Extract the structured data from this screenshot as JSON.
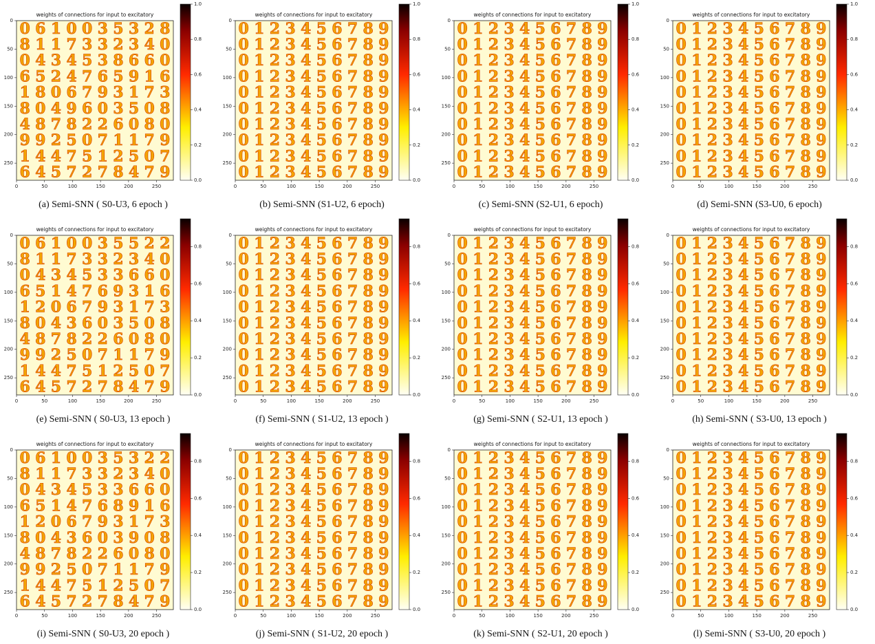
{
  "chart_data": [
    {
      "type": "heatmap",
      "title": "weights of connections for input to excitatory",
      "caption": "(a) Semi-SNN ( S0-U3, 6 epoch )",
      "cmap": "hot_r",
      "rows": [
        "0610035328",
        "8117332340",
        "0434538660",
        "6524765916",
        "1806793173",
        "8049603508",
        "4878226080",
        "9925071179",
        "1447512507",
        "6457278479"
      ],
      "xlim": [
        0,
        280
      ],
      "ylim": [
        0,
        280
      ],
      "xticks": [
        0,
        50,
        100,
        150,
        200,
        250
      ],
      "yticks": [
        0,
        50,
        100,
        150,
        200,
        250
      ],
      "clim": [
        0,
        1
      ],
      "cticks": [
        {
          "value": 0,
          "label": "0.0"
        },
        {
          "value": 0.2,
          "label": "0.2"
        },
        {
          "value": 0.4,
          "label": "0.4"
        },
        {
          "value": 0.6,
          "label": "0.6"
        },
        {
          "value": 0.8,
          "label": "0.8"
        },
        {
          "value": 1,
          "label": "1.0"
        }
      ]
    },
    {
      "type": "heatmap",
      "title": "weights of connections for input to excitatory",
      "caption": "(b) Semi-SNN (S1-U2, 6 epoch)",
      "cmap": "hot_r",
      "rows": [
        "0123456789",
        "0123456789",
        "0123456789",
        "0123456789",
        "0123456789",
        "0123456789",
        "0123456789",
        "0123456789",
        "0123456789",
        "0123456789"
      ],
      "xlim": [
        0,
        280
      ],
      "ylim": [
        0,
        280
      ],
      "xticks": [
        0,
        50,
        100,
        150,
        200,
        250
      ],
      "yticks": [
        0,
        50,
        100,
        150,
        200,
        250
      ],
      "clim": [
        0,
        1
      ],
      "cticks": [
        {
          "value": 0,
          "label": "0.0"
        },
        {
          "value": 0.2,
          "label": "0.2"
        },
        {
          "value": 0.4,
          "label": "0.4"
        },
        {
          "value": 0.6,
          "label": "0.6"
        },
        {
          "value": 0.8,
          "label": "0.8"
        },
        {
          "value": 1,
          "label": "1.0"
        }
      ]
    },
    {
      "type": "heatmap",
      "title": "weights of connections for input to excitatory",
      "caption": "(c) Semi-SNN (S2-U1, 6 epoch)",
      "cmap": "hot_r",
      "rows": [
        "0123456789",
        "0123456789",
        "0123456789",
        "0123456789",
        "0123456789",
        "0123456789",
        "0123456789",
        "0123456789",
        "0123456789",
        "0123456789"
      ],
      "xlim": [
        0,
        280
      ],
      "ylim": [
        0,
        280
      ],
      "xticks": [
        0,
        50,
        100,
        150,
        200,
        250
      ],
      "yticks": [
        0,
        50,
        100,
        150,
        200,
        250
      ],
      "clim": [
        0,
        1
      ],
      "cticks": [
        {
          "value": 0,
          "label": "0.0"
        },
        {
          "value": 0.2,
          "label": "0.2"
        },
        {
          "value": 0.4,
          "label": "0.4"
        },
        {
          "value": 0.6,
          "label": "0.6"
        },
        {
          "value": 0.8,
          "label": "0.8"
        },
        {
          "value": 1,
          "label": "1.0"
        }
      ]
    },
    {
      "type": "heatmap",
      "title": "weights of connections for input to excitatory",
      "caption": "(d) Semi-SNN (S3-U0, 6 epoch)",
      "cmap": "hot_r",
      "rows": [
        "0123456789",
        "0123456789",
        "0123456789",
        "0123456789",
        "0123456789",
        "0123456789",
        "0123456789",
        "0123456789",
        "0123456789",
        "0123456789"
      ],
      "xlim": [
        0,
        280
      ],
      "ylim": [
        0,
        280
      ],
      "xticks": [
        0,
        50,
        100,
        150,
        200,
        250
      ],
      "yticks": [
        0,
        50,
        100,
        150,
        200,
        250
      ],
      "clim": [
        0,
        1
      ],
      "cticks": [
        {
          "value": 0,
          "label": "0.0"
        },
        {
          "value": 0.2,
          "label": "0.2"
        },
        {
          "value": 0.4,
          "label": "0.4"
        },
        {
          "value": 0.6,
          "label": "0.6"
        },
        {
          "value": 0.8,
          "label": "0.8"
        },
        {
          "value": 1,
          "label": "1.0"
        }
      ]
    },
    {
      "type": "heatmap",
      "title": "weights of connections for input to excitatory",
      "caption": "(e) Semi-SNN ( S0-U3, 13 epoch )",
      "cmap": "hot_r",
      "rows": [
        "0610035522",
        "8117332340",
        "0434533660",
        "6514769316",
        "1206793173",
        "8043603508",
        "4878226080",
        "9925071179",
        "1447512507",
        "6457278479"
      ],
      "xlim": [
        0,
        280
      ],
      "ylim": [
        0,
        280
      ],
      "xticks": [
        0,
        50,
        100,
        150,
        200,
        250
      ],
      "yticks": [
        0,
        50,
        100,
        150,
        200,
        250
      ],
      "clim": [
        0,
        0.95
      ],
      "cticks": [
        {
          "value": 0,
          "label": "0.0"
        },
        {
          "value": 0.2,
          "label": "0.2"
        },
        {
          "value": 0.4,
          "label": "0.4"
        },
        {
          "value": 0.6,
          "label": "0.6"
        },
        {
          "value": 0.8,
          "label": "0.8"
        }
      ]
    },
    {
      "type": "heatmap",
      "title": "weights of connections for input to excitatory",
      "caption": "(f) Semi-SNN ( S1-U2, 13 epoch )",
      "cmap": "hot_r",
      "rows": [
        "0123456789",
        "0123456789",
        "0123456789",
        "0123456789",
        "0123456789",
        "0123456789",
        "0123456789",
        "0123456789",
        "0123456789",
        "0123456789"
      ],
      "xlim": [
        0,
        280
      ],
      "ylim": [
        0,
        280
      ],
      "xticks": [
        0,
        50,
        100,
        150,
        200,
        250
      ],
      "yticks": [
        0,
        50,
        100,
        150,
        200,
        250
      ],
      "clim": [
        0,
        0.95
      ],
      "cticks": [
        {
          "value": 0,
          "label": "0.0"
        },
        {
          "value": 0.2,
          "label": "0.2"
        },
        {
          "value": 0.4,
          "label": "0.4"
        },
        {
          "value": 0.6,
          "label": "0.6"
        },
        {
          "value": 0.8,
          "label": "0.8"
        }
      ]
    },
    {
      "type": "heatmap",
      "title": "weights of connections for input to excitatory",
      "caption": "(g) Semi-SNN ( S2-U1, 13 epoch )",
      "cmap": "hot_r",
      "rows": [
        "0123456789",
        "0123456789",
        "0123456789",
        "0123456789",
        "0123456789",
        "0123456789",
        "0123456789",
        "0123456789",
        "0123456789",
        "0123456789"
      ],
      "xlim": [
        0,
        280
      ],
      "ylim": [
        0,
        280
      ],
      "xticks": [
        0,
        50,
        100,
        150,
        200,
        250
      ],
      "yticks": [
        0,
        50,
        100,
        150,
        200,
        250
      ],
      "clim": [
        0,
        0.95
      ],
      "cticks": [
        {
          "value": 0,
          "label": "0.0"
        },
        {
          "value": 0.2,
          "label": "0.2"
        },
        {
          "value": 0.4,
          "label": "0.4"
        },
        {
          "value": 0.6,
          "label": "0.6"
        },
        {
          "value": 0.8,
          "label": "0.8"
        }
      ]
    },
    {
      "type": "heatmap",
      "title": "weights of connections for input to excitatory",
      "caption": "(h) Semi-SNN ( S3-U0, 13 epoch )",
      "cmap": "hot_r",
      "rows": [
        "0123456789",
        "0123456789",
        "0123456789",
        "0123456789",
        "0123456789",
        "0123456789",
        "0123456789",
        "0123456789",
        "0123456789",
        "0123456789"
      ],
      "xlim": [
        0,
        280
      ],
      "ylim": [
        0,
        280
      ],
      "xticks": [
        0,
        50,
        100,
        150,
        200,
        250
      ],
      "yticks": [
        0,
        50,
        100,
        150,
        200,
        250
      ],
      "clim": [
        0,
        0.95
      ],
      "cticks": [
        {
          "value": 0,
          "label": "0.0"
        },
        {
          "value": 0.2,
          "label": "0.2"
        },
        {
          "value": 0.4,
          "label": "0.4"
        },
        {
          "value": 0.6,
          "label": "0.6"
        },
        {
          "value": 0.8,
          "label": "0.8"
        }
      ]
    },
    {
      "type": "heatmap",
      "title": "weights of connections for input to excitatory",
      "caption": "(i) Semi-SNN ( S0-U3, 20 epoch )",
      "cmap": "hot_r",
      "rows": [
        "0610035322",
        "8117332340",
        "0434533660",
        "6514768916",
        "1206793173",
        "8043603908",
        "4878226080",
        "9925071179",
        "1447512507",
        "6457278479"
      ],
      "xlim": [
        0,
        280
      ],
      "ylim": [
        0,
        280
      ],
      "xticks": [
        0,
        50,
        100,
        150,
        200,
        250
      ],
      "yticks": [
        0,
        50,
        100,
        150,
        200,
        250
      ],
      "clim": [
        0,
        0.95
      ],
      "cticks": [
        {
          "value": 0,
          "label": "0.0"
        },
        {
          "value": 0.2,
          "label": "0.2"
        },
        {
          "value": 0.4,
          "label": "0.4"
        },
        {
          "value": 0.6,
          "label": "0.6"
        },
        {
          "value": 0.8,
          "label": "0.8"
        }
      ]
    },
    {
      "type": "heatmap",
      "title": "weights of connections for input to excitatory",
      "caption": "(j) Semi-SNN ( S1-U2, 20 epoch )",
      "cmap": "hot_r",
      "rows": [
        "0123456789",
        "0123456789",
        "0123456789",
        "0123456789",
        "0123456789",
        "0123456789",
        "0123456789",
        "0123456789",
        "0123456789",
        "0123456789"
      ],
      "xlim": [
        0,
        280
      ],
      "ylim": [
        0,
        280
      ],
      "xticks": [
        0,
        50,
        100,
        150,
        200,
        250
      ],
      "yticks": [
        0,
        50,
        100,
        150,
        200,
        250
      ],
      "clim": [
        0,
        0.95
      ],
      "cticks": [
        {
          "value": 0,
          "label": "0.0"
        },
        {
          "value": 0.2,
          "label": "0.2"
        },
        {
          "value": 0.4,
          "label": "0.4"
        },
        {
          "value": 0.6,
          "label": "0.6"
        },
        {
          "value": 0.8,
          "label": "0.8"
        }
      ]
    },
    {
      "type": "heatmap",
      "title": "weights of connections for input to excitatory",
      "caption": "(k) Semi-SNN ( S2-U1, 20 epoch )",
      "cmap": "hot_r",
      "rows": [
        "0123456789",
        "0123456789",
        "0123456789",
        "0123456789",
        "0123456789",
        "0123456789",
        "0123456789",
        "0123456789",
        "0123456789",
        "0123456789"
      ],
      "xlim": [
        0,
        280
      ],
      "ylim": [
        0,
        280
      ],
      "xticks": [
        0,
        50,
        100,
        150,
        200,
        250
      ],
      "yticks": [
        0,
        50,
        100,
        150,
        200,
        250
      ],
      "clim": [
        0,
        0.95
      ],
      "cticks": [
        {
          "value": 0,
          "label": "0.0"
        },
        {
          "value": 0.2,
          "label": "0.2"
        },
        {
          "value": 0.4,
          "label": "0.4"
        },
        {
          "value": 0.6,
          "label": "0.6"
        },
        {
          "value": 0.8,
          "label": "0.8"
        }
      ]
    },
    {
      "type": "heatmap",
      "title": "weights of connections for input to excitatory",
      "caption": "(l) Semi-SNN ( S3-U0, 20 epoch )",
      "cmap": "hot_r",
      "rows": [
        "0123456789",
        "0123456789",
        "0123456789",
        "0123456789",
        "0123456789",
        "0123456789",
        "0123456789",
        "0123456789",
        "0123456789",
        "0123456789"
      ],
      "xlim": [
        0,
        280
      ],
      "ylim": [
        0,
        280
      ],
      "xticks": [
        0,
        50,
        100,
        150,
        200,
        250
      ],
      "yticks": [
        0,
        50,
        100,
        150,
        200,
        250
      ],
      "clim": [
        0,
        0.95
      ],
      "cticks": [
        {
          "value": 0,
          "label": "0.0"
        },
        {
          "value": 0.2,
          "label": "0.2"
        },
        {
          "value": 0.4,
          "label": "0.4"
        },
        {
          "value": 0.6,
          "label": "0.6"
        },
        {
          "value": 0.8,
          "label": "0.8"
        }
      ]
    }
  ]
}
